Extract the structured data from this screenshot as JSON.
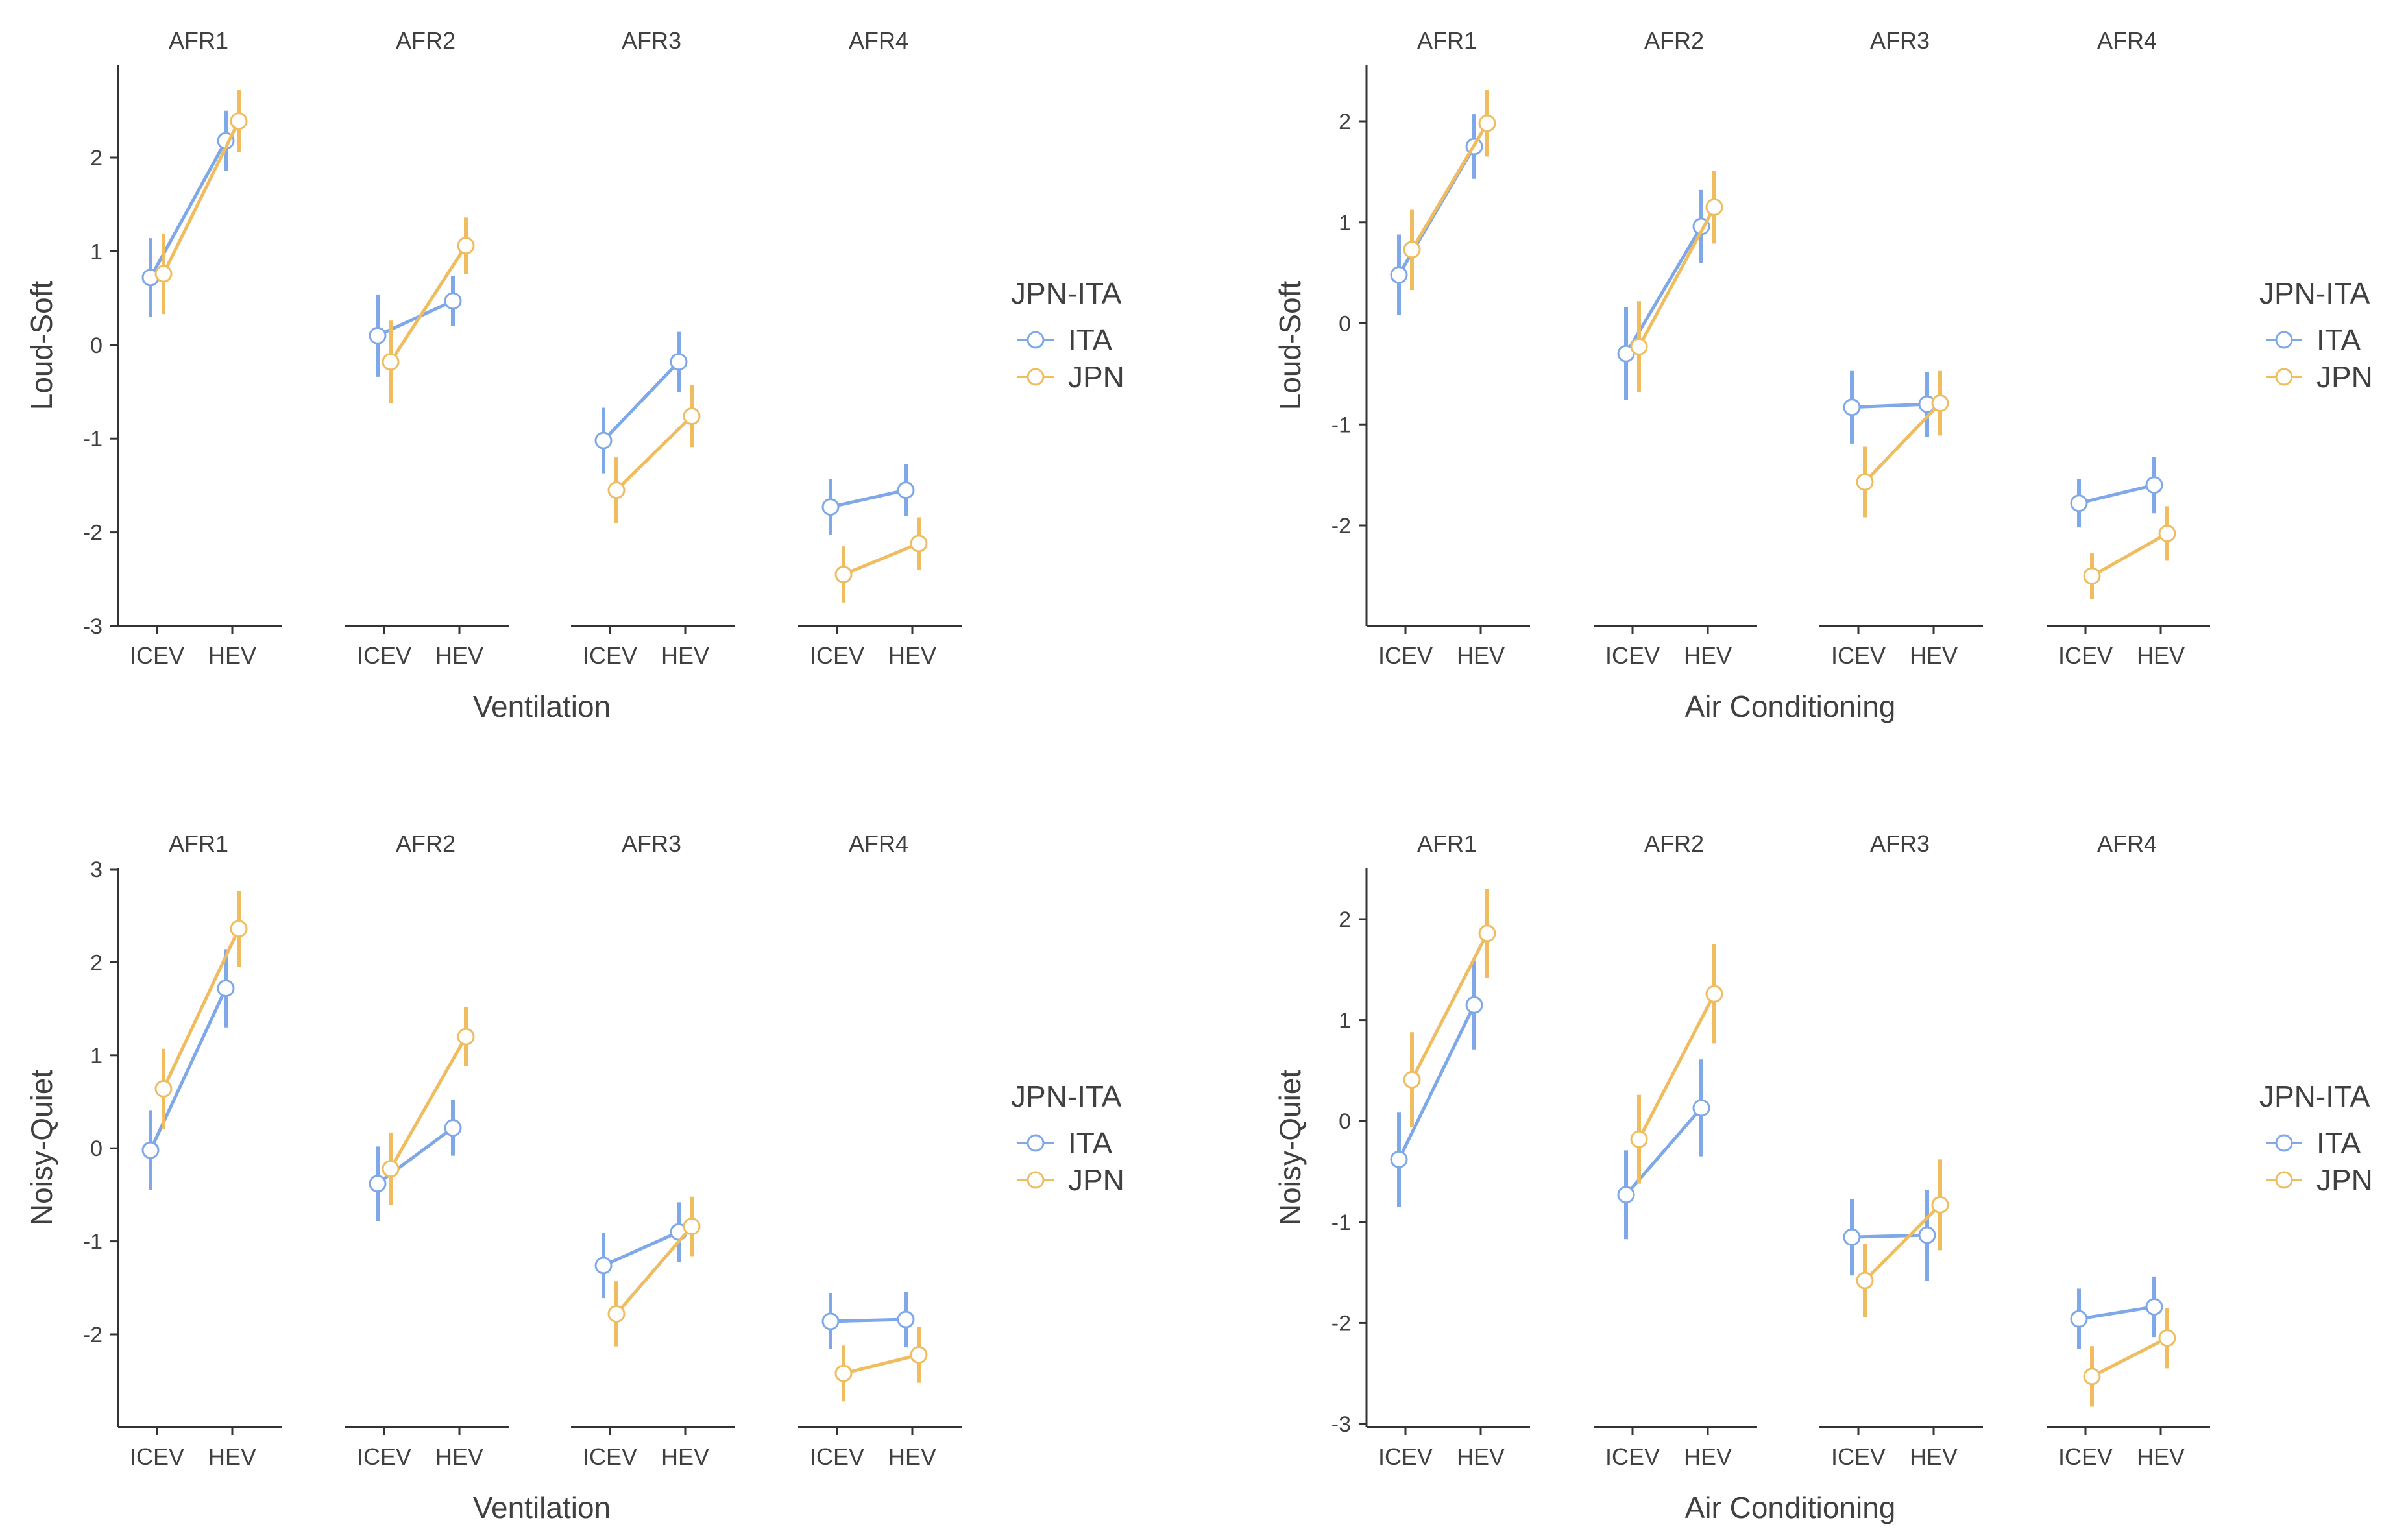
{
  "chart_data": [
    {
      "type": "line",
      "title": "",
      "xlabel": "Ventilation",
      "ylabel": "Loud-Soft",
      "ylim": [
        -3,
        2.9
      ],
      "yticks": [
        -3,
        -2,
        -1,
        0,
        1,
        2
      ],
      "panels": [
        "AFR1",
        "AFR2",
        "AFR3",
        "AFR4"
      ],
      "categories": [
        "ICEV",
        "HEV"
      ],
      "legend": {
        "title": "JPN-ITA",
        "position": "right"
      },
      "series": [
        {
          "name": "ITA",
          "color": "#7fa8e8",
          "values": [
            [
              0.72,
              2.18
            ],
            [
              0.1,
              0.47
            ],
            [
              -1.02,
              -0.18
            ],
            [
              -1.73,
              -1.55
            ]
          ],
          "errors": [
            [
              0.42,
              0.32
            ],
            [
              0.44,
              0.27
            ],
            [
              0.35,
              0.32
            ],
            [
              0.3,
              0.28
            ]
          ]
        },
        {
          "name": "JPN",
          "color": "#f0bc60",
          "values": [
            [
              0.76,
              2.39
            ],
            [
              -0.18,
              1.06
            ],
            [
              -1.55,
              -0.76
            ],
            [
              -2.45,
              -2.12
            ]
          ],
          "errors": [
            [
              0.43,
              0.33
            ],
            [
              0.44,
              0.3
            ],
            [
              0.35,
              0.33
            ],
            [
              0.3,
              0.28
            ]
          ]
        }
      ]
    },
    {
      "type": "line",
      "title": "",
      "xlabel": "Air Conditioning",
      "ylabel": "Loud-Soft",
      "ylim": [
        -3,
        2.5
      ],
      "yticks": [
        -2,
        -1,
        0,
        1,
        2
      ],
      "panels": [
        "AFR1",
        "AFR2",
        "AFR3",
        "AFR4"
      ],
      "categories": [
        "ICEV",
        "HEV"
      ],
      "legend": {
        "title": "JPN-ITA",
        "position": "right"
      },
      "series": [
        {
          "name": "ITA",
          "color": "#7fa8e8",
          "values": [
            [
              0.48,
              1.75
            ],
            [
              -0.3,
              0.96
            ],
            [
              -0.83,
              -0.8
            ],
            [
              -1.78,
              -1.6
            ]
          ],
          "errors": [
            [
              0.4,
              0.32
            ],
            [
              0.46,
              0.36
            ],
            [
              0.36,
              0.32
            ],
            [
              0.24,
              0.28
            ]
          ]
        },
        {
          "name": "JPN",
          "color": "#f0bc60",
          "values": [
            [
              0.73,
              1.98
            ],
            [
              -0.23,
              1.15
            ],
            [
              -1.57,
              -0.79
            ],
            [
              -2.5,
              -2.08
            ]
          ],
          "errors": [
            [
              0.4,
              0.33
            ],
            [
              0.45,
              0.36
            ],
            [
              0.35,
              0.32
            ],
            [
              0.23,
              0.27
            ]
          ]
        }
      ]
    },
    {
      "type": "line",
      "title": "",
      "xlabel": "Ventilation",
      "ylabel": "Noisy-Quiet",
      "ylim": [
        -3,
        3
      ],
      "yticks": [
        -2,
        -1,
        0,
        1,
        2,
        3
      ],
      "panels": [
        "AFR1",
        "AFR2",
        "AFR3",
        "AFR4"
      ],
      "categories": [
        "ICEV",
        "HEV"
      ],
      "legend": {
        "title": "JPN-ITA",
        "position": "right"
      },
      "series": [
        {
          "name": "ITA",
          "color": "#7fa8e8",
          "values": [
            [
              -0.02,
              1.72
            ],
            [
              -0.38,
              0.22
            ],
            [
              -1.26,
              -0.9
            ],
            [
              -1.86,
              -1.84
            ]
          ],
          "errors": [
            [
              0.43,
              0.42
            ],
            [
              0.4,
              0.3
            ],
            [
              0.35,
              0.32
            ],
            [
              0.3,
              0.3
            ]
          ]
        },
        {
          "name": "JPN",
          "color": "#f0bc60",
          "values": [
            [
              0.64,
              2.36
            ],
            [
              -0.22,
              1.2
            ],
            [
              -1.78,
              -0.84
            ],
            [
              -2.42,
              -2.22
            ]
          ],
          "errors": [
            [
              0.43,
              0.41
            ],
            [
              0.39,
              0.32
            ],
            [
              0.35,
              0.32
            ],
            [
              0.3,
              0.3
            ]
          ]
        }
      ]
    },
    {
      "type": "line",
      "title": "",
      "xlabel": "Air Conditioning",
      "ylabel": "Noisy-Quiet",
      "ylim": [
        -3,
        2.5
      ],
      "yticks": [
        -3,
        -2,
        -1,
        0,
        1,
        2
      ],
      "panels": [
        "AFR1",
        "AFR2",
        "AFR3",
        "AFR4"
      ],
      "categories": [
        "ICEV",
        "HEV"
      ],
      "legend": {
        "title": "JPN-ITA",
        "position": "right"
      },
      "series": [
        {
          "name": "ITA",
          "color": "#7fa8e8",
          "values": [
            [
              -0.38,
              1.15
            ],
            [
              -0.73,
              0.13
            ],
            [
              -1.15,
              -1.13
            ],
            [
              -1.96,
              -1.84
            ]
          ],
          "errors": [
            [
              0.47,
              0.44
            ],
            [
              0.44,
              0.48
            ],
            [
              0.38,
              0.45
            ],
            [
              0.3,
              0.3
            ]
          ]
        },
        {
          "name": "JPN",
          "color": "#f0bc60",
          "values": [
            [
              0.41,
              1.86
            ],
            [
              -0.18,
              1.26
            ],
            [
              -1.58,
              -0.83
            ],
            [
              -2.53,
              -2.15
            ]
          ],
          "errors": [
            [
              0.47,
              0.44
            ],
            [
              0.44,
              0.49
            ],
            [
              0.36,
              0.45
            ],
            [
              0.3,
              0.3
            ]
          ]
        }
      ]
    }
  ]
}
